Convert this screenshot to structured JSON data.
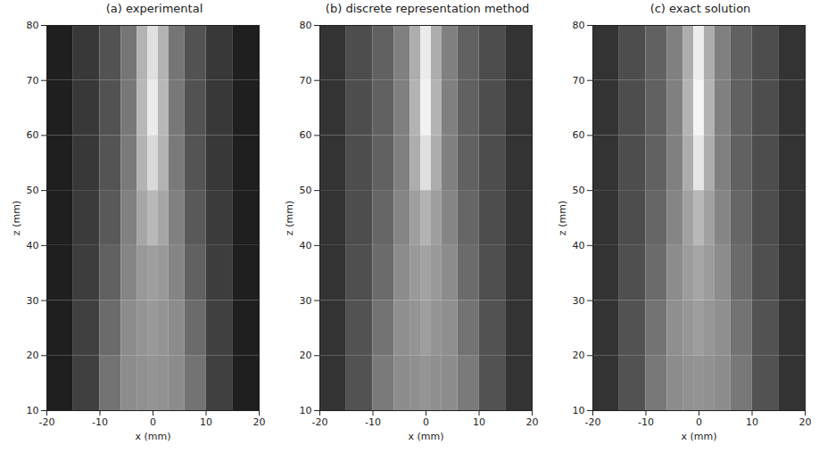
{
  "chart_data": [
    {
      "type": "heatmap",
      "title": "(a) experimental",
      "x_label": "x (mm)",
      "y_label": "z (mm)",
      "xlim": [
        -20,
        20
      ],
      "ylim": [
        10,
        80
      ],
      "xticks": [
        -20,
        -10,
        0,
        10,
        20
      ],
      "yticks": [
        10,
        20,
        30,
        40,
        50,
        60,
        70,
        80
      ],
      "x_edges": [
        -20,
        -15,
        -10,
        -6,
        -3,
        -1,
        1,
        3,
        6,
        10,
        15,
        20
      ],
      "z_edges": [
        10,
        20,
        30,
        40,
        50,
        60,
        70,
        80
      ],
      "intensity_range": [
        0,
        1
      ],
      "cells": [
        [
          0.12,
          0.25,
          0.45,
          0.55,
          0.57,
          0.58,
          0.57,
          0.55,
          0.45,
          0.25,
          0.12
        ],
        [
          0.12,
          0.25,
          0.42,
          0.55,
          0.58,
          0.6,
          0.58,
          0.55,
          0.42,
          0.25,
          0.12
        ],
        [
          0.12,
          0.24,
          0.38,
          0.52,
          0.6,
          0.62,
          0.6,
          0.52,
          0.38,
          0.24,
          0.12
        ],
        [
          0.12,
          0.23,
          0.35,
          0.5,
          0.65,
          0.72,
          0.65,
          0.5,
          0.35,
          0.23,
          0.12
        ],
        [
          0.12,
          0.22,
          0.33,
          0.48,
          0.7,
          0.85,
          0.7,
          0.48,
          0.33,
          0.22,
          0.12
        ],
        [
          0.12,
          0.22,
          0.32,
          0.47,
          0.72,
          0.92,
          0.72,
          0.47,
          0.32,
          0.22,
          0.12
        ],
        [
          0.12,
          0.22,
          0.32,
          0.46,
          0.7,
          0.88,
          0.7,
          0.46,
          0.32,
          0.22,
          0.12
        ]
      ]
    },
    {
      "type": "heatmap",
      "title": "(b) discrete representation method",
      "x_label": "x (mm)",
      "y_label": "z (mm)",
      "xlim": [
        -20,
        20
      ],
      "ylim": [
        10,
        80
      ],
      "xticks": [
        -20,
        -10,
        0,
        10,
        20
      ],
      "yticks": [
        10,
        20,
        30,
        40,
        50,
        60,
        70,
        80
      ],
      "x_edges": [
        -20,
        -15,
        -10,
        -6,
        -3,
        -1,
        1,
        3,
        6,
        10,
        15,
        20
      ],
      "z_edges": [
        10,
        20,
        30,
        40,
        50,
        60,
        70,
        80
      ],
      "intensity_range": [
        0,
        1
      ],
      "cells": [
        [
          0.2,
          0.32,
          0.48,
          0.55,
          0.56,
          0.58,
          0.56,
          0.55,
          0.48,
          0.32,
          0.2
        ],
        [
          0.2,
          0.32,
          0.45,
          0.56,
          0.58,
          0.62,
          0.58,
          0.56,
          0.45,
          0.32,
          0.2
        ],
        [
          0.2,
          0.31,
          0.42,
          0.55,
          0.6,
          0.64,
          0.6,
          0.55,
          0.42,
          0.31,
          0.2
        ],
        [
          0.2,
          0.3,
          0.4,
          0.52,
          0.62,
          0.7,
          0.62,
          0.52,
          0.4,
          0.3,
          0.2
        ],
        [
          0.2,
          0.3,
          0.38,
          0.5,
          0.68,
          0.88,
          0.68,
          0.5,
          0.38,
          0.3,
          0.2
        ],
        [
          0.2,
          0.3,
          0.38,
          0.5,
          0.7,
          0.95,
          0.7,
          0.5,
          0.38,
          0.3,
          0.2
        ],
        [
          0.2,
          0.3,
          0.38,
          0.5,
          0.68,
          0.92,
          0.68,
          0.5,
          0.38,
          0.3,
          0.2
        ]
      ]
    },
    {
      "type": "heatmap",
      "title": "(c) exact solution",
      "x_label": "x (mm)",
      "y_label": "z (mm)",
      "xlim": [
        -20,
        20
      ],
      "ylim": [
        10,
        80
      ],
      "xticks": [
        -20,
        -10,
        0,
        10,
        20
      ],
      "yticks": [
        10,
        20,
        30,
        40,
        50,
        60,
        70,
        80
      ],
      "x_edges": [
        -20,
        -15,
        -10,
        -6,
        -3,
        -1,
        1,
        3,
        6,
        10,
        15,
        20
      ],
      "z_edges": [
        10,
        20,
        30,
        40,
        50,
        60,
        70,
        80
      ],
      "intensity_range": [
        0,
        1
      ],
      "cells": [
        [
          0.2,
          0.32,
          0.47,
          0.55,
          0.57,
          0.58,
          0.57,
          0.55,
          0.47,
          0.32,
          0.2
        ],
        [
          0.2,
          0.32,
          0.45,
          0.56,
          0.59,
          0.62,
          0.59,
          0.56,
          0.45,
          0.32,
          0.2
        ],
        [
          0.2,
          0.31,
          0.42,
          0.55,
          0.61,
          0.65,
          0.61,
          0.55,
          0.42,
          0.31,
          0.2
        ],
        [
          0.2,
          0.3,
          0.4,
          0.52,
          0.63,
          0.72,
          0.63,
          0.52,
          0.4,
          0.3,
          0.2
        ],
        [
          0.2,
          0.3,
          0.38,
          0.5,
          0.68,
          0.9,
          0.68,
          0.5,
          0.38,
          0.3,
          0.2
        ],
        [
          0.2,
          0.3,
          0.38,
          0.5,
          0.7,
          0.96,
          0.7,
          0.5,
          0.38,
          0.3,
          0.2
        ],
        [
          0.2,
          0.3,
          0.38,
          0.5,
          0.68,
          0.93,
          0.68,
          0.5,
          0.38,
          0.3,
          0.2
        ]
      ]
    }
  ]
}
